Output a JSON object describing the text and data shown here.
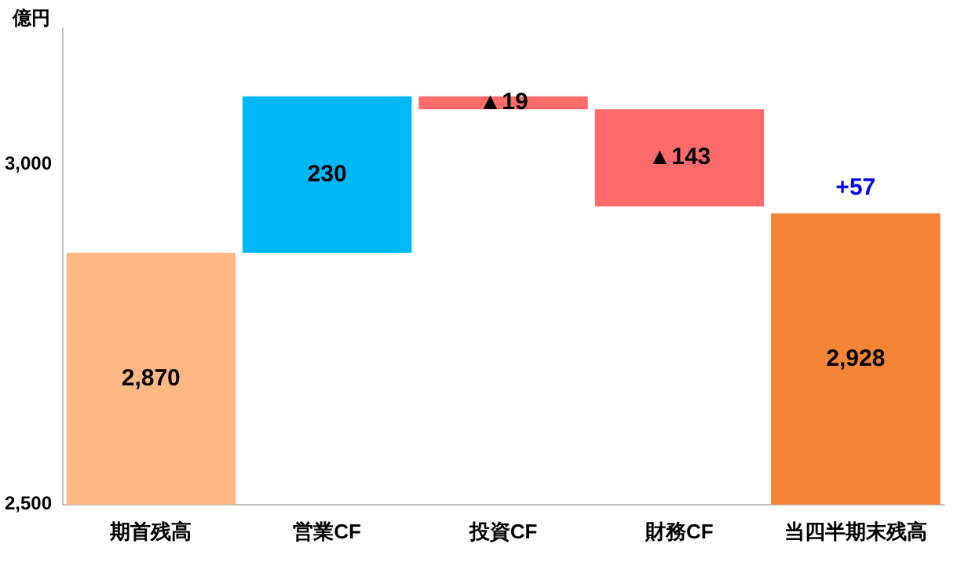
{
  "chart_data": {
    "type": "bar",
    "ylabel": "億円",
    "categories": [
      "期首残高",
      "営業CF",
      "投資CF",
      "財務CF",
      "当四半期末残高"
    ],
    "values": [
      2870,
      230,
      -19,
      -143,
      2928
    ],
    "base": [
      null,
      2870,
      3100,
      3081,
      null
    ],
    "colors": [
      "#ffb884",
      "#00b8f8",
      "#ff6b6b",
      "#ff6b6b",
      "#f58536"
    ],
    "value_labels": [
      "2,870",
      "230",
      "▲19",
      "▲143",
      "2,928"
    ],
    "annotations": [
      {
        "text": "+57",
        "x": "当四半期末残高",
        "y": 2928
      }
    ],
    "ylim": [
      2500,
      3200
    ],
    "yticks": [
      {
        "value": 2500,
        "label": "2,500"
      },
      {
        "value": 3000,
        "label": "3,000"
      }
    ],
    "grid": false,
    "legend": false
  }
}
